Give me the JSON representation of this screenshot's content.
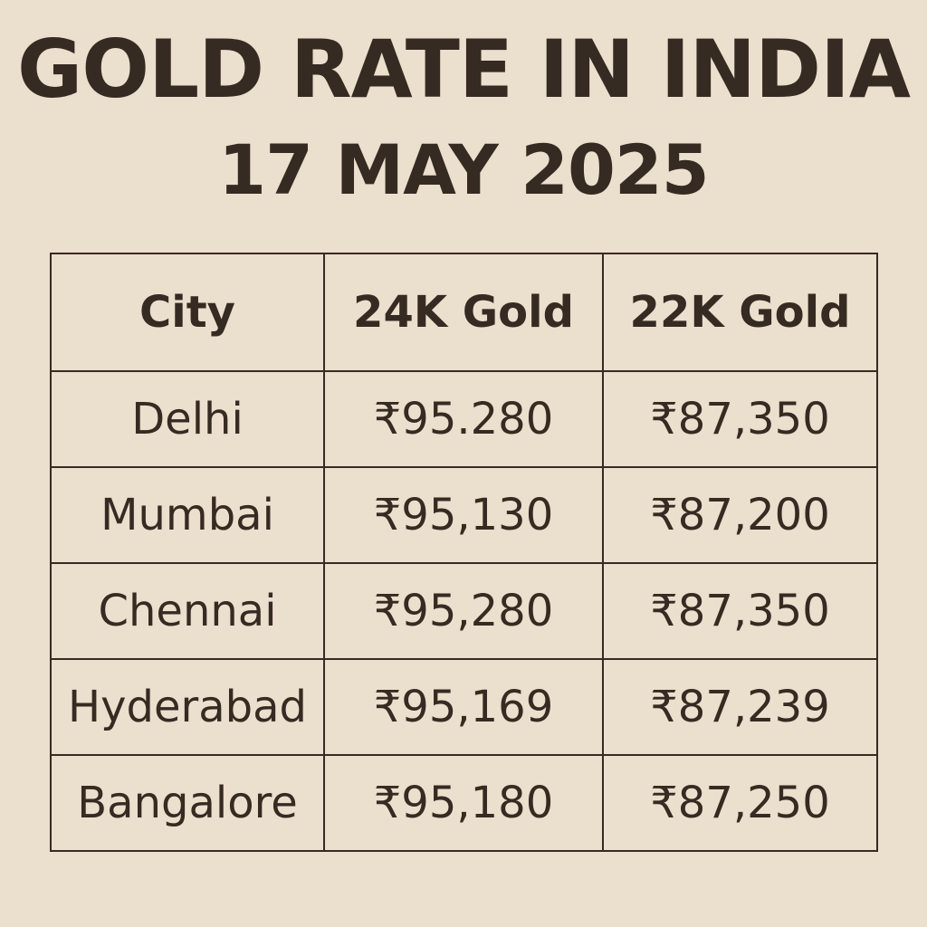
{
  "header": {
    "title": "GOLD RATE IN INDIA",
    "date": "17 MAY 2025"
  },
  "table": {
    "columns": [
      "City",
      "24K Gold",
      "22K Gold"
    ],
    "rows": [
      {
        "city": "Delhi",
        "gold_24k": "₹95.280",
        "gold_22k": "₹87,350"
      },
      {
        "city": "Mumbai",
        "gold_24k": "₹95,130",
        "gold_22k": "₹87,200"
      },
      {
        "city": "Chennai",
        "gold_24k": "₹95,280",
        "gold_22k": "₹87,350"
      },
      {
        "city": "Hyderabad",
        "gold_24k": "₹95,169",
        "gold_22k": "₹87,239"
      },
      {
        "city": "Bangalore",
        "gold_24k": "₹95,180",
        "gold_22k": "₹87,250"
      }
    ]
  },
  "colors": {
    "background": "#ebdfcd",
    "text": "#352b22",
    "border": "#352b22"
  }
}
